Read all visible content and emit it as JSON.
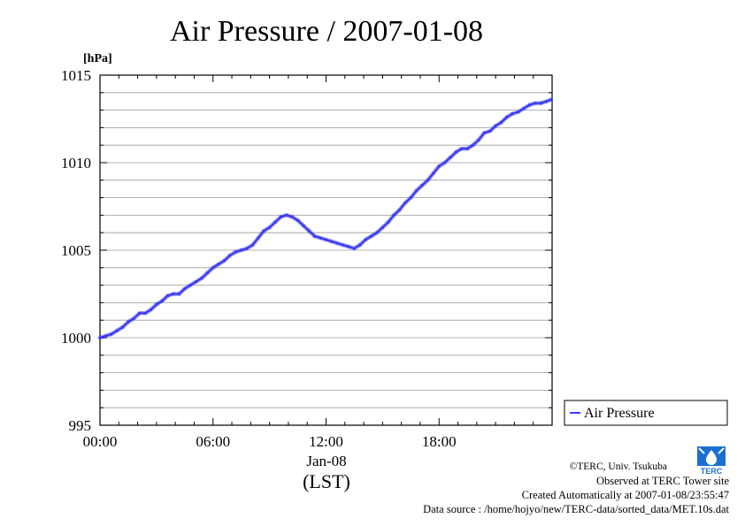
{
  "chart_data": {
    "type": "line",
    "title": "Air Pressure / 2007-01-08",
    "ylabel": "[hPa]",
    "xlabel": "(LST)",
    "date_label": "Jan-08",
    "ylim": [
      995,
      1015
    ],
    "yticks": [
      995,
      1000,
      1005,
      1010,
      1015
    ],
    "ytick_labels": [
      "995",
      "1000",
      "1005",
      "1010",
      "1015"
    ],
    "xlim_hours": [
      0,
      24
    ],
    "xticks_hours": [
      0,
      6,
      12,
      18
    ],
    "xtick_labels": [
      "00:00",
      "06:00",
      "12:00",
      "18:00"
    ],
    "grid": true,
    "legend": {
      "placement": "right",
      "entries": [
        "Air Pressure"
      ]
    },
    "series": [
      {
        "name": "Air Pressure",
        "color": "#3b3bff",
        "x_hours": [
          0.0,
          0.3,
          0.6,
          0.9,
          1.2,
          1.5,
          1.8,
          2.1,
          2.4,
          2.7,
          3.0,
          3.3,
          3.6,
          3.9,
          4.2,
          4.5,
          4.8,
          5.1,
          5.4,
          5.7,
          6.0,
          6.3,
          6.6,
          6.9,
          7.2,
          7.5,
          7.8,
          8.1,
          8.4,
          8.7,
          9.0,
          9.3,
          9.6,
          9.9,
          10.2,
          10.5,
          10.8,
          11.1,
          11.4,
          11.7,
          12.0,
          12.3,
          12.6,
          12.9,
          13.2,
          13.5,
          13.8,
          14.1,
          14.4,
          14.7,
          15.0,
          15.3,
          15.6,
          15.9,
          16.2,
          16.5,
          16.8,
          17.1,
          17.4,
          17.7,
          18.0,
          18.3,
          18.6,
          18.9,
          19.2,
          19.5,
          19.8,
          20.1,
          20.4,
          20.7,
          21.0,
          21.3,
          21.6,
          21.9,
          22.2,
          22.5,
          22.8,
          23.1,
          23.4,
          23.7,
          23.95
        ],
        "values": [
          1000.0,
          1000.1,
          1000.2,
          1000.4,
          1000.6,
          1000.9,
          1001.1,
          1001.4,
          1001.4,
          1001.6,
          1001.9,
          1002.1,
          1002.4,
          1002.5,
          1002.5,
          1002.8,
          1003.0,
          1003.2,
          1003.4,
          1003.7,
          1004.0,
          1004.2,
          1004.4,
          1004.7,
          1004.9,
          1005.0,
          1005.1,
          1005.3,
          1005.7,
          1006.1,
          1006.3,
          1006.6,
          1006.9,
          1007.0,
          1006.9,
          1006.7,
          1006.4,
          1006.1,
          1005.8,
          1005.7,
          1005.6,
          1005.5,
          1005.4,
          1005.3,
          1005.2,
          1005.1,
          1005.3,
          1005.6,
          1005.8,
          1006.0,
          1006.3,
          1006.6,
          1007.0,
          1007.3,
          1007.7,
          1008.0,
          1008.4,
          1008.7,
          1009.0,
          1009.4,
          1009.8,
          1010.0,
          1010.3,
          1010.6,
          1010.8,
          1010.8,
          1011.0,
          1011.3,
          1011.7,
          1011.8,
          1012.1,
          1012.3,
          1012.6,
          1012.8,
          1012.9,
          1013.1,
          1013.3,
          1013.4,
          1013.4,
          1013.5,
          1013.6
        ]
      }
    ]
  },
  "credits": {
    "copyright": "©TERC, Univ. Tsukuba",
    "observed": "Observed at TERC Tower site",
    "created": "Created Automatically at 2007-01-08/23:55:47",
    "source": "Data source : /home/hojyo/new/TERC-data/sorted_data/MET.10s.dat"
  },
  "logo": {
    "text": "TERC",
    "color": "#1a6fd1"
  }
}
